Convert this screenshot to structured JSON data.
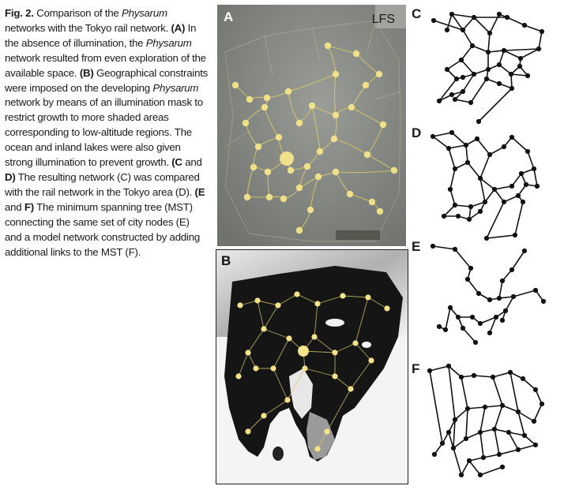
{
  "figure": {
    "label": "Fig. 2.",
    "caption_runs": [
      {
        "t": " Comparison of the ",
        "s": "n"
      },
      {
        "t": "Physarum",
        "s": "i"
      },
      {
        "t": " networks with the Tokyo rail network. ",
        "s": "n"
      },
      {
        "t": "(A)",
        "s": "b"
      },
      {
        "t": " In the absence of illumination, the ",
        "s": "n"
      },
      {
        "t": "Physarum",
        "s": "i"
      },
      {
        "t": " network resulted from even exploration of the available space. ",
        "s": "n"
      },
      {
        "t": "(B)",
        "s": "b"
      },
      {
        "t": " Geographical constraints were imposed on the developing ",
        "s": "n"
      },
      {
        "t": "Physarum",
        "s": "i"
      },
      {
        "t": " network by means of an illumination mask to restrict growth to more shaded areas corresponding to low-altitude regions. The ocean and inland lakes were also given strong illumination to prevent growth. ",
        "s": "n"
      },
      {
        "t": "(C",
        "s": "b"
      },
      {
        "t": " and ",
        "s": "n"
      },
      {
        "t": "D)",
        "s": "b"
      },
      {
        "t": " The resulting network (C) was compared with the rail network in the Tokyo area (D). ",
        "s": "n"
      },
      {
        "t": "(E",
        "s": "b"
      },
      {
        "t": " and ",
        "s": "n"
      },
      {
        "t": "F)",
        "s": "b"
      },
      {
        "t": " The minimum spanning tree (MST) connecting the same set of city nodes (E) and a model network constructed by adding additional links to the MST (F).",
        "s": "n"
      }
    ]
  },
  "panels": {
    "A": {
      "label": "A",
      "tag": "LFS"
    },
    "B": {
      "label": "B"
    },
    "C": {
      "label": "C"
    },
    "D": {
      "label": "D"
    },
    "E": {
      "label": "E"
    },
    "F": {
      "label": "F"
    }
  },
  "colors": {
    "plate_bg": "#8c8f8a",
    "mold": "#d9c96a",
    "node_glow": "#f3e48a",
    "land_dark": "#151515",
    "sea": "#f4f4f4",
    "graph_ink": "#111111"
  }
}
